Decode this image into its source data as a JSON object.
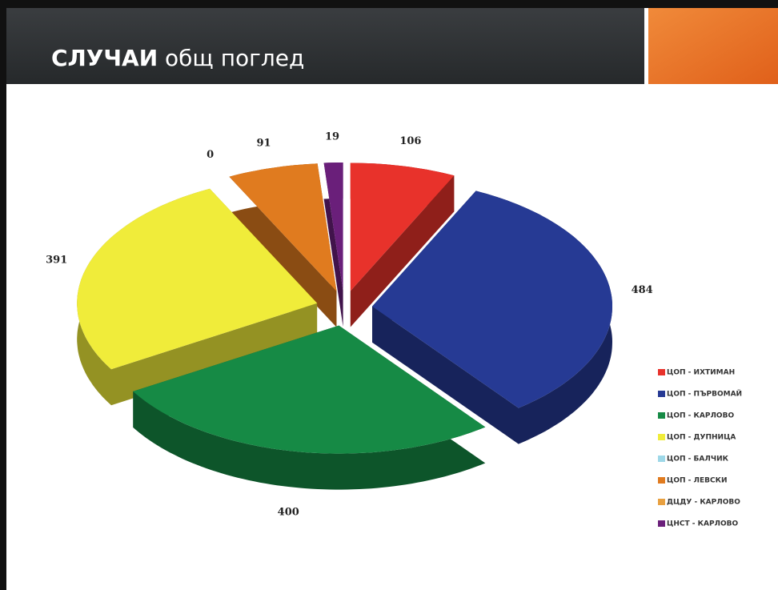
{
  "chart_data": {
    "type": "pie3d",
    "title_bold": "СЛУЧАИ",
    "title_rest": "общ поглед",
    "categories": [
      "ЦОП - ИХТИМАН",
      "ЦОП - ПЪРВОМАЙ",
      "ЦОП - КАРЛОВО",
      "ЦОП - ДУПНИЦА",
      "ЦОП - БАЛЧИК",
      "ЦОП - ЛЕВСКИ",
      "ДЦДУ - КАРЛОВО",
      "ЦНСТ - КАРЛОВО"
    ],
    "values": [
      106,
      484,
      400,
      391,
      0,
      91,
      null,
      19
    ],
    "colors": [
      "#e8322b",
      "#263a94",
      "#168a45",
      "#f0ec3a",
      "#9ed8e8",
      "#e07b1f",
      "#e8a040",
      "#6a1f7a"
    ],
    "legend": "right"
  }
}
